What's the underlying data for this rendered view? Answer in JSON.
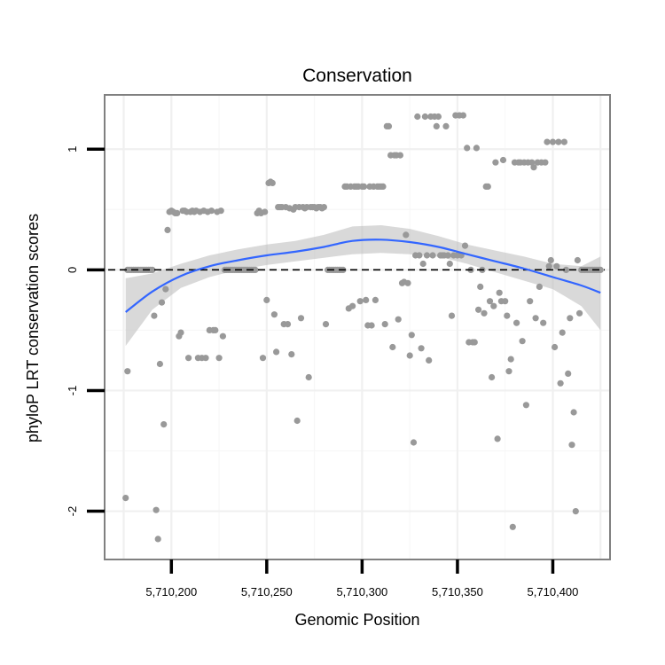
{
  "chart_data": {
    "type": "scatter",
    "title": "Conservation",
    "xlabel": "Genomic Position",
    "ylabel": "phyloP LRT conservation scores",
    "xlim": [
      5710165,
      5710430
    ],
    "ylim": [
      -2.4,
      1.45
    ],
    "x_ticks": [
      5710200,
      5710250,
      5710300,
      5710350,
      5710400
    ],
    "x_tick_labels": [
      "5,710,200",
      "5,710,250",
      "5,710,300",
      "5,710,350",
      "5,710,400"
    ],
    "y_ticks": [
      -2,
      -1,
      0,
      1
    ],
    "y_tick_labels": [
      "-2",
      "-1",
      "0",
      "1"
    ],
    "grid": true,
    "reference_line": {
      "y": 0,
      "style": "dashed",
      "color": "#000000"
    },
    "point_color": "#999999",
    "smooth": {
      "method": "loess",
      "color": "#3366ff",
      "ci_color": "#b3b3b3",
      "x": [
        5710176,
        5710190,
        5710205,
        5710220,
        5710235,
        5710250,
        5710265,
        5710280,
        5710295,
        5710310,
        5710325,
        5710340,
        5710355,
        5710370,
        5710385,
        5710400,
        5710415,
        5710425
      ],
      "y": [
        -0.35,
        -0.18,
        -0.05,
        0.03,
        0.08,
        0.12,
        0.15,
        0.19,
        0.24,
        0.25,
        0.23,
        0.19,
        0.13,
        0.07,
        0.01,
        -0.06,
        -0.13,
        -0.19
      ],
      "lower": [
        -0.63,
        -0.33,
        -0.15,
        -0.06,
        0.0,
        0.04,
        0.07,
        0.1,
        0.13,
        0.14,
        0.13,
        0.11,
        0.05,
        -0.02,
        -0.09,
        -0.16,
        -0.3,
        -0.5
      ],
      "upper": [
        -0.07,
        -0.03,
        0.05,
        0.12,
        0.17,
        0.21,
        0.24,
        0.29,
        0.36,
        0.37,
        0.34,
        0.28,
        0.21,
        0.16,
        0.11,
        0.05,
        0.03,
        0.11
      ]
    },
    "series": [
      {
        "name": "phyloP",
        "points": [
          [
            5710176,
            -1.89
          ],
          [
            5710177,
            -0.84
          ],
          [
            5710177,
            0.0
          ],
          [
            5710178,
            0.0
          ],
          [
            5710179,
            0.0
          ],
          [
            5710180,
            0.0
          ],
          [
            5710181,
            0.0
          ],
          [
            5710182,
            0.0
          ],
          [
            5710183,
            0.0
          ],
          [
            5710184,
            0.0
          ],
          [
            5710185,
            0.0
          ],
          [
            5710186,
            0.0
          ],
          [
            5710187,
            0.0
          ],
          [
            5710188,
            0.0
          ],
          [
            5710189,
            0.0
          ],
          [
            5710190,
            0.0
          ],
          [
            5710191,
            -0.38
          ],
          [
            5710192,
            -1.99
          ],
          [
            5710193,
            -2.23
          ],
          [
            5710194,
            -0.78
          ],
          [
            5710195,
            -0.27
          ],
          [
            5710196,
            -1.28
          ],
          [
            5710197,
            -0.16
          ],
          [
            5710198,
            0.33
          ],
          [
            5710199,
            0.48
          ],
          [
            5710200,
            0.49
          ],
          [
            5710201,
            0.48
          ],
          [
            5710202,
            0.47
          ],
          [
            5710203,
            0.47
          ],
          [
            5710204,
            -0.55
          ],
          [
            5710205,
            -0.52
          ],
          [
            5710206,
            0.49
          ],
          [
            5710207,
            0.49
          ],
          [
            5710208,
            0.48
          ],
          [
            5710209,
            -0.73
          ],
          [
            5710210,
            0.48
          ],
          [
            5710211,
            0.49
          ],
          [
            5710212,
            0.48
          ],
          [
            5710213,
            0.49
          ],
          [
            5710214,
            -0.73
          ],
          [
            5710215,
            0.48
          ],
          [
            5710216,
            -0.73
          ],
          [
            5710217,
            0.49
          ],
          [
            5710218,
            -0.73
          ],
          [
            5710219,
            0.48
          ],
          [
            5710220,
            -0.5
          ],
          [
            5710221,
            0.49
          ],
          [
            5710222,
            -0.5
          ],
          [
            5710223,
            -0.5
          ],
          [
            5710224,
            0.48
          ],
          [
            5710225,
            -0.73
          ],
          [
            5710226,
            0.49
          ],
          [
            5710227,
            -0.55
          ],
          [
            5710228,
            0.0
          ],
          [
            5710229,
            0.0
          ],
          [
            5710230,
            0.0
          ],
          [
            5710231,
            0.0
          ],
          [
            5710232,
            0.0
          ],
          [
            5710233,
            0.0
          ],
          [
            5710234,
            0.0
          ],
          [
            5710235,
            0.0
          ],
          [
            5710236,
            0.0
          ],
          [
            5710237,
            0.0
          ],
          [
            5710238,
            0.0
          ],
          [
            5710239,
            0.0
          ],
          [
            5710240,
            0.0
          ],
          [
            5710241,
            0.0
          ],
          [
            5710242,
            0.0
          ],
          [
            5710243,
            0.0
          ],
          [
            5710244,
            0.0
          ],
          [
            5710245,
            0.47
          ],
          [
            5710246,
            0.49
          ],
          [
            5710247,
            0.47
          ],
          [
            5710248,
            -0.73
          ],
          [
            5710249,
            0.48
          ],
          [
            5710250,
            -0.25
          ],
          [
            5710251,
            0.72
          ],
          [
            5710252,
            0.73
          ],
          [
            5710253,
            0.72
          ],
          [
            5710254,
            -0.37
          ],
          [
            5710255,
            -0.68
          ],
          [
            5710256,
            0.52
          ],
          [
            5710257,
            0.52
          ],
          [
            5710258,
            0.52
          ],
          [
            5710259,
            -0.45
          ],
          [
            5710260,
            0.52
          ],
          [
            5710261,
            -0.45
          ],
          [
            5710262,
            0.51
          ],
          [
            5710263,
            -0.7
          ],
          [
            5710264,
            0.5
          ],
          [
            5710265,
            0.52
          ],
          [
            5710266,
            -1.25
          ],
          [
            5710267,
            0.52
          ],
          [
            5710268,
            -0.4
          ],
          [
            5710269,
            0.52
          ],
          [
            5710270,
            0.51
          ],
          [
            5710271,
            0.52
          ],
          [
            5710272,
            -0.89
          ],
          [
            5710273,
            0.52
          ],
          [
            5710274,
            0.52
          ],
          [
            5710275,
            0.52
          ],
          [
            5710276,
            0.51
          ],
          [
            5710277,
            0.52
          ],
          [
            5710278,
            0.52
          ],
          [
            5710279,
            0.51
          ],
          [
            5710280,
            0.52
          ],
          [
            5710281,
            -0.45
          ],
          [
            5710282,
            0.0
          ],
          [
            5710283,
            0.0
          ],
          [
            5710284,
            0.0
          ],
          [
            5710285,
            0.0
          ],
          [
            5710286,
            0.0
          ],
          [
            5710287,
            0.0
          ],
          [
            5710288,
            0.0
          ],
          [
            5710289,
            0.0
          ],
          [
            5710290,
            0.0
          ],
          [
            5710291,
            0.69
          ],
          [
            5710292,
            0.69
          ],
          [
            5710293,
            -0.32
          ],
          [
            5710294,
            0.69
          ],
          [
            5710295,
            -0.3
          ],
          [
            5710296,
            0.69
          ],
          [
            5710297,
            0.69
          ],
          [
            5710298,
            0.69
          ],
          [
            5710299,
            -0.26
          ],
          [
            5710300,
            0.69
          ],
          [
            5710301,
            0.69
          ],
          [
            5710302,
            -0.25
          ],
          [
            5710303,
            -0.46
          ],
          [
            5710304,
            0.69
          ],
          [
            5710305,
            -0.46
          ],
          [
            5710306,
            0.69
          ],
          [
            5710307,
            -0.25
          ],
          [
            5710308,
            0.69
          ],
          [
            5710309,
            0.69
          ],
          [
            5710310,
            0.69
          ],
          [
            5710311,
            0.69
          ],
          [
            5710312,
            -0.45
          ],
          [
            5710313,
            1.19
          ],
          [
            5710314,
            1.19
          ],
          [
            5710315,
            0.95
          ],
          [
            5710316,
            -0.64
          ],
          [
            5710317,
            0.95
          ],
          [
            5710318,
            0.95
          ],
          [
            5710319,
            -0.41
          ],
          [
            5710320,
            0.95
          ],
          [
            5710321,
            -0.11
          ],
          [
            5710322,
            -0.1
          ],
          [
            5710323,
            0.29
          ],
          [
            5710324,
            -0.11
          ],
          [
            5710325,
            -0.71
          ],
          [
            5710326,
            -0.54
          ],
          [
            5710327,
            -1.43
          ],
          [
            5710328,
            0.12
          ],
          [
            5710329,
            1.27
          ],
          [
            5710330,
            0.12
          ],
          [
            5710331,
            -0.65
          ],
          [
            5710332,
            0.05
          ],
          [
            5710333,
            1.27
          ],
          [
            5710334,
            0.12
          ],
          [
            5710335,
            -0.75
          ],
          [
            5710336,
            1.27
          ],
          [
            5710337,
            0.12
          ],
          [
            5710338,
            1.27
          ],
          [
            5710339,
            1.19
          ],
          [
            5710340,
            1.27
          ],
          [
            5710341,
            0.12
          ],
          [
            5710342,
            0.12
          ],
          [
            5710343,
            0.12
          ],
          [
            5710344,
            1.19
          ],
          [
            5710345,
            0.12
          ],
          [
            5710346,
            0.05
          ],
          [
            5710347,
            -0.38
          ],
          [
            5710348,
            0.12
          ],
          [
            5710349,
            1.28
          ],
          [
            5710350,
            0.12
          ],
          [
            5710351,
            1.28
          ],
          [
            5710352,
            0.12
          ],
          [
            5710353,
            1.28
          ],
          [
            5710354,
            0.2
          ],
          [
            5710355,
            1.01
          ],
          [
            5710356,
            -0.6
          ],
          [
            5710357,
            0.0
          ],
          [
            5710358,
            -0.6
          ],
          [
            5710359,
            -0.6
          ],
          [
            5710360,
            1.01
          ],
          [
            5710361,
            -0.33
          ],
          [
            5710362,
            -0.14
          ],
          [
            5710363,
            0.0
          ],
          [
            5710364,
            -0.36
          ],
          [
            5710365,
            0.69
          ],
          [
            5710366,
            0.69
          ],
          [
            5710367,
            -0.26
          ],
          [
            5710368,
            -0.89
          ],
          [
            5710369,
            -0.3
          ],
          [
            5710370,
            0.89
          ],
          [
            5710371,
            -1.4
          ],
          [
            5710372,
            -0.19
          ],
          [
            5710373,
            -0.26
          ],
          [
            5710374,
            0.91
          ],
          [
            5710375,
            -0.26
          ],
          [
            5710376,
            -0.38
          ],
          [
            5710377,
            -0.84
          ],
          [
            5710378,
            -0.74
          ],
          [
            5710379,
            -2.13
          ],
          [
            5710380,
            0.89
          ],
          [
            5710381,
            -0.44
          ],
          [
            5710382,
            0.89
          ],
          [
            5710383,
            0.89
          ],
          [
            5710384,
            -0.59
          ],
          [
            5710385,
            0.89
          ],
          [
            5710386,
            -1.12
          ],
          [
            5710387,
            0.89
          ],
          [
            5710388,
            -0.26
          ],
          [
            5710389,
            0.89
          ],
          [
            5710390,
            0.85
          ],
          [
            5710391,
            -0.4
          ],
          [
            5710392,
            0.89
          ],
          [
            5710393,
            -0.14
          ],
          [
            5710394,
            0.89
          ],
          [
            5710395,
            -0.44
          ],
          [
            5710396,
            0.89
          ],
          [
            5710397,
            1.06
          ],
          [
            5710398,
            0.03
          ],
          [
            5710399,
            0.08
          ],
          [
            5710400,
            1.06
          ],
          [
            5710401,
            -0.64
          ],
          [
            5710402,
            0.03
          ],
          [
            5710403,
            1.06
          ],
          [
            5710404,
            -0.94
          ],
          [
            5710405,
            -0.52
          ],
          [
            5710406,
            1.06
          ],
          [
            5710407,
            0.0
          ],
          [
            5710408,
            -0.86
          ],
          [
            5710409,
            -0.4
          ],
          [
            5710410,
            -1.45
          ],
          [
            5710411,
            -1.18
          ],
          [
            5710412,
            -2.0
          ],
          [
            5710413,
            0.08
          ],
          [
            5710414,
            -0.36
          ],
          [
            5710415,
            0.0
          ],
          [
            5710416,
            0.0
          ],
          [
            5710417,
            0.0
          ],
          [
            5710418,
            0.0
          ],
          [
            5710419,
            0.0
          ],
          [
            5710420,
            0.0
          ],
          [
            5710421,
            0.0
          ],
          [
            5710422,
            0.0
          ],
          [
            5710423,
            0.0
          ],
          [
            5710424,
            0.0
          ],
          [
            5710425,
            0.0
          ]
        ]
      }
    ]
  }
}
